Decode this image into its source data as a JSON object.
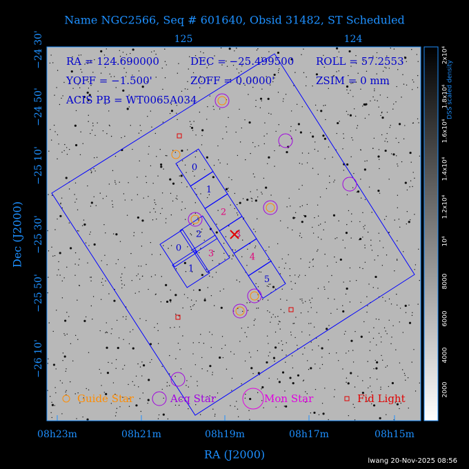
{
  "header": {
    "title": "Name NGC2566, Seq # 601640, Obsid 31482, ST Scheduled"
  },
  "info": [
    "RA = 124.690000",
    "DEC = −25.499500",
    "ROLL = 57.2553",
    "YOFF = −1.500'",
    "ZOFF = 0.0000'",
    "ZSIM = 0 mm",
    "ACIS PB = WT0065A034"
  ],
  "axes": {
    "x_label": "RA (J2000)",
    "y_label": "Dec (J2000)",
    "bottom_ticks": [
      "08h23m",
      "08h21m",
      "08h19m",
      "08h17m",
      "08h15m"
    ],
    "top_ticks": [
      "125",
      "124"
    ],
    "left_ticks": [
      "−24 30'",
      "−24 50'",
      "−25 10'",
      "−25 30'",
      "−25 50'",
      "−26 10'"
    ]
  },
  "colorbar": {
    "label": "DSS scaled density",
    "ticks": [
      "2000",
      "4000",
      "6000",
      "8000",
      "10⁴",
      "1.2x10⁴",
      "1.4x10⁴",
      "1.6x10⁴",
      "1.8x10⁴",
      "2x10⁴"
    ]
  },
  "chips": {
    "s_array": [
      "0",
      "1",
      "2",
      "3",
      "4",
      "5"
    ],
    "i_array": [
      "0",
      "2",
      "1",
      "3"
    ]
  },
  "legend": [
    "Guide Star",
    "Acq Star",
    "Mon Star",
    "Fid Light"
  ],
  "footer": "lwang 20-Nov-2025 08:56"
}
